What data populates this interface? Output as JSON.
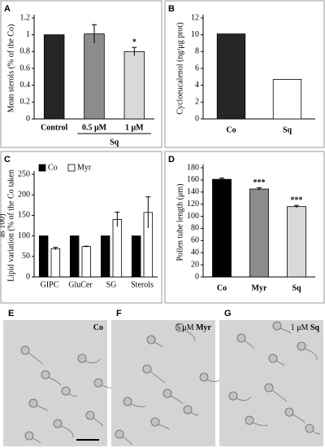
{
  "chart_data": [
    {
      "panel": "A",
      "type": "bar",
      "ylabel": "Mean sterols (% of the Co)",
      "categories": [
        "Control",
        "0.5 μM",
        "1 μM"
      ],
      "group_label": "Sq",
      "values": [
        1,
        1.01,
        0.8
      ],
      "errors": [
        null,
        0.11,
        0.05
      ],
      "colors": [
        "#262626",
        "#8c8c8c",
        "#d9d9d9"
      ],
      "annotations": [
        null,
        null,
        "*"
      ],
      "ylim": [
        0,
        1.2
      ],
      "yticks": [
        0,
        0.2,
        0.4,
        0.6,
        0.8,
        1,
        1.2
      ]
    },
    {
      "panel": "B",
      "type": "bar",
      "ylabel": "Cycloeucalenol (ng/μg prot)",
      "categories": [
        "Co",
        "Sq"
      ],
      "values": [
        10.1,
        4.7
      ],
      "colors": [
        "#262626",
        "#ffffff"
      ],
      "ylim": [
        0,
        12
      ],
      "yticks": [
        0,
        2,
        4,
        6,
        8,
        10,
        12
      ]
    },
    {
      "panel": "C",
      "type": "bar",
      "ylabel": [
        "Lipid variation (% of the Co taken",
        "as 100)"
      ],
      "categories": [
        "GIPC",
        "GluCer",
        "SG",
        "Sterols"
      ],
      "series": [
        {
          "name": "Co",
          "color": "#000000",
          "values": [
            100,
            100,
            100,
            100
          ]
        },
        {
          "name": "Myr",
          "color": "#ffffff",
          "values": [
            69,
            74,
            140,
            157
          ],
          "errors": [
            3,
            1,
            18,
            38
          ]
        }
      ],
      "ylim": [
        0,
        250
      ],
      "yticks": [
        0,
        50,
        100,
        150,
        200,
        250
      ]
    },
    {
      "panel": "D",
      "type": "bar",
      "ylabel": "Pollen tube length (μm)",
      "categories": [
        "Co",
        "Myr",
        "Sq"
      ],
      "values": [
        161,
        145,
        116
      ],
      "errors": [
        2,
        2,
        2
      ],
      "colors": [
        "#000000",
        "#8c8c8c",
        "#d9d9d9"
      ],
      "annotations": [
        null,
        "***",
        "***"
      ],
      "ylim": [
        0,
        180
      ],
      "yticks": [
        0,
        20,
        40,
        60,
        80,
        100,
        120,
        140,
        160,
        180
      ]
    }
  ],
  "micrographs": [
    {
      "panel": "E",
      "caption": "Co"
    },
    {
      "panel": "F",
      "caption_prefix": "5 μM",
      "caption": "Myr"
    },
    {
      "panel": "G",
      "caption_prefix": "1 μM",
      "caption": "Sq"
    }
  ]
}
